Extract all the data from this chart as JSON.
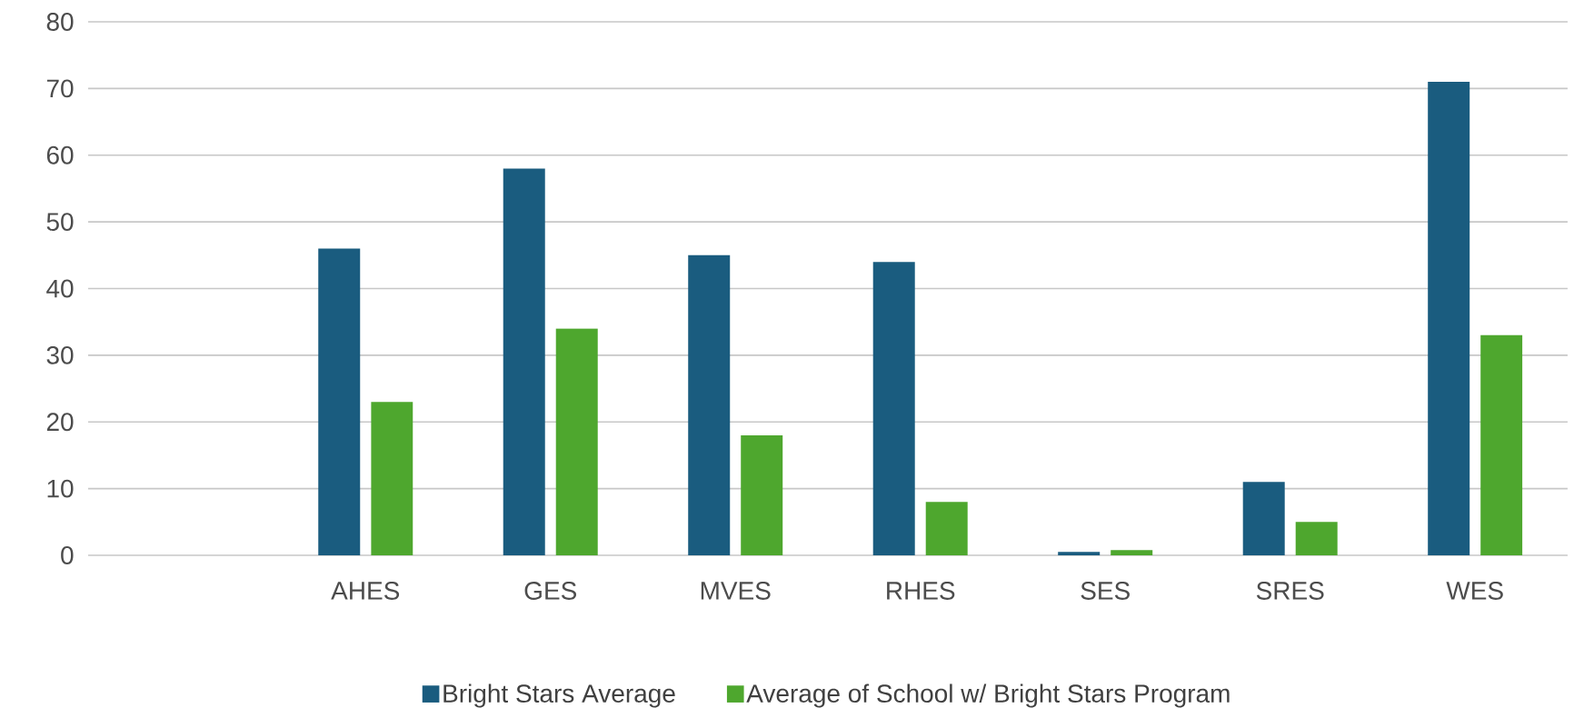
{
  "chart_data": {
    "type": "bar",
    "categories": [
      null,
      "AHES",
      "GES",
      "MVES",
      "RHES",
      "SES",
      "SRES",
      "WES"
    ],
    "series": [
      {
        "name": "Bright Stars Average",
        "color": "#1a5c7f",
        "values": [
          null,
          46,
          58,
          45,
          44,
          0.5,
          11,
          71
        ]
      },
      {
        "name": "Average of School w/ Bright Stars Program",
        "color": "#4ea72e",
        "values": [
          null,
          23,
          34,
          18,
          8,
          0.8,
          5,
          33
        ]
      }
    ],
    "ylim": [
      0,
      80
    ],
    "yticks": [
      0,
      10,
      20,
      30,
      40,
      50,
      60,
      70,
      80
    ],
    "grid": "y",
    "legend": "bottom"
  }
}
